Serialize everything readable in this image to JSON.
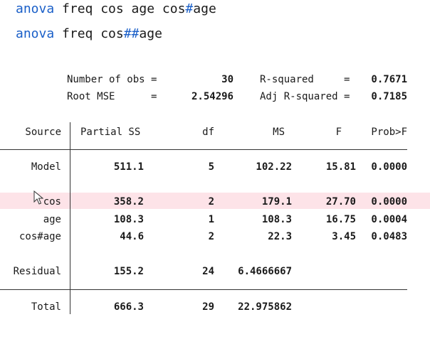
{
  "commands": [
    {
      "kw": "anova",
      "rest_a": " freq cos age cos",
      "op": "#",
      "rest_b": "age"
    },
    {
      "kw": "anova",
      "rest_a": " freq cos",
      "op": "##",
      "rest_b": "age"
    }
  ],
  "summary": {
    "nobs_label": "Number of obs =",
    "nobs_value": "30",
    "rootmse_label": "Root MSE      =",
    "rootmse_value": "2.54296",
    "rsq_label": "R-squared     =",
    "rsq_value": "0.7671",
    "adjrsq_label": "Adj R-squared =",
    "adjrsq_value": "0.7185"
  },
  "table": {
    "headers": {
      "source": "Source",
      "ss": "Partial SS",
      "df": "df",
      "ms": "MS",
      "f": "F",
      "p": "Prob>F"
    },
    "rows": [
      {
        "source": "Model",
        "ss": "511.1",
        "df": "5",
        "ms": "102.22",
        "f": "15.81",
        "p": "0.0000"
      },
      {
        "source": "cos",
        "ss": "358.2",
        "df": "2",
        "ms": "179.1",
        "f": "27.70",
        "p": "0.0000"
      },
      {
        "source": "age",
        "ss": "108.3",
        "df": "1",
        "ms": "108.3",
        "f": "16.75",
        "p": "0.0004"
      },
      {
        "source": "cos#age",
        "ss": "44.6",
        "df": "2",
        "ms": "22.3",
        "f": "3.45",
        "p": "0.0483"
      },
      {
        "source": "Residual",
        "ss": "155.2",
        "df": "24",
        "ms": "6.4666667",
        "f": "",
        "p": ""
      },
      {
        "source": "Total",
        "ss": "666.3",
        "df": "29",
        "ms": "22.975862",
        "f": "",
        "p": ""
      }
    ]
  },
  "colors": {
    "keyword": "#1a5fc8",
    "highlight": "#fde3e8"
  },
  "icons": {
    "cursor": "mouse-pointer-icon"
  }
}
